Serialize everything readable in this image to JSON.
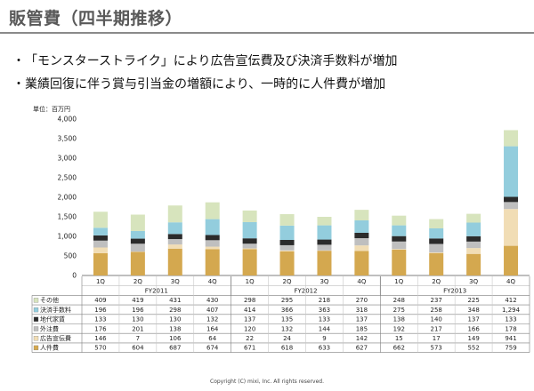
{
  "title": "販管費（四半期推移）",
  "bullets": [
    "「モンスターストライク」により広告宣伝費及び決済手数料が増加",
    "業績回復に伴う賞与引当金の増額により、一時的に人件費が増加"
  ],
  "unit_label": "単位：百万円",
  "copyright": "Copyright (C) mixi, Inc. All rights reserved.",
  "chart_data": {
    "type": "bar",
    "stacked": true,
    "y_ticks": [
      "0",
      "500",
      "1,000",
      "1,500",
      "2,000",
      "2,500",
      "3,000",
      "3,500",
      "4,000"
    ],
    "ylim": [
      0,
      4000
    ],
    "categories": [
      "1Q",
      "2Q",
      "3Q",
      "4Q",
      "1Q",
      "2Q",
      "3Q",
      "4Q",
      "1Q",
      "2Q",
      "3Q",
      "4Q"
    ],
    "groups": [
      {
        "label": "FY2011",
        "count": 4
      },
      {
        "label": "FY2012",
        "count": 4
      },
      {
        "label": "FY2013",
        "count": 4
      }
    ],
    "series": [
      {
        "name": "その他",
        "color": "#d7e4bd",
        "values": [
          409,
          419,
          431,
          430,
          298,
          295,
          218,
          270,
          248,
          237,
          225,
          412
        ],
        "labels": [
          "409",
          "419",
          "431",
          "430",
          "298",
          "295",
          "218",
          "270",
          "248",
          "237",
          "225",
          "412"
        ]
      },
      {
        "name": "決済手数料",
        "color": "#93cddd",
        "values": [
          196,
          196,
          298,
          407,
          414,
          366,
          363,
          318,
          275,
          258,
          348,
          1294
        ],
        "labels": [
          "196",
          "196",
          "298",
          "407",
          "414",
          "366",
          "363",
          "318",
          "275",
          "258",
          "348",
          "1,294"
        ]
      },
      {
        "name": "地代家賃",
        "color": "#2b2b2b",
        "values": [
          133,
          130,
          130,
          132,
          137,
          135,
          133,
          137,
          138,
          140,
          137,
          133
        ],
        "labels": [
          "133",
          "130",
          "130",
          "132",
          "137",
          "135",
          "133",
          "137",
          "138",
          "140",
          "137",
          "133"
        ]
      },
      {
        "name": "外注費",
        "color": "#bfbfbf",
        "values": [
          176,
          201,
          138,
          164,
          120,
          132,
          144,
          185,
          192,
          217,
          166,
          178
        ],
        "labels": [
          "176",
          "201",
          "138",
          "164",
          "120",
          "132",
          "144",
          "185",
          "192",
          "217",
          "166",
          "178"
        ]
      },
      {
        "name": "広告宣伝費",
        "color": "#f1ddb5",
        "values": [
          146,
          7,
          106,
          64,
          22,
          24,
          9,
          142,
          15,
          17,
          149,
          941
        ],
        "labels": [
          "146",
          "7",
          "106",
          "64",
          "22",
          "24",
          "9",
          "142",
          "15",
          "17",
          "149",
          "941"
        ]
      },
      {
        "name": "人件費",
        "color": "#d4a84f",
        "values": [
          570,
          604,
          687,
          674,
          671,
          618,
          633,
          627,
          662,
          573,
          552,
          759
        ],
        "labels": [
          "570",
          "604",
          "687",
          "674",
          "671",
          "618",
          "633",
          "627",
          "662",
          "573",
          "552",
          "759"
        ]
      }
    ],
    "legend_placement": "table-left",
    "grid": false
  }
}
